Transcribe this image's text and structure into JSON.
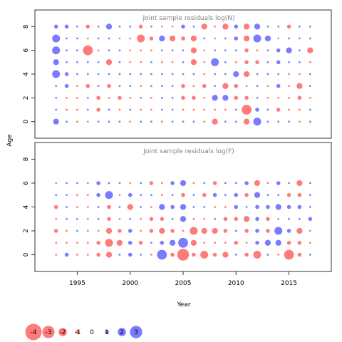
{
  "chart_data": [
    {
      "type": "scatter",
      "subtype": "bubble",
      "title": "Joint sample residuals log(N)",
      "ylabel": "Age",
      "xlim": [
        1991,
        2019
      ],
      "ylim": [
        -1.4,
        9.4
      ],
      "x": [
        1993,
        1994,
        1995,
        1996,
        1997,
        1998,
        1999,
        2000,
        2001,
        2002,
        2003,
        2004,
        2005,
        2006,
        2007,
        2008,
        2009,
        2010,
        2011,
        2012,
        2013,
        2014,
        2015,
        2016,
        2017
      ],
      "y_ticks": [
        0,
        2,
        4,
        6,
        8
      ],
      "ages": [
        0,
        1,
        2,
        3,
        4,
        5,
        6,
        7,
        8
      ],
      "residuals": [
        [
          1.5,
          0.5,
          -0.5,
          -0.5,
          0.5,
          0.5,
          0.5,
          -0.5,
          0.5,
          0.5,
          -0.5,
          0.5,
          0.5,
          0.5,
          -0.5,
          -1.5,
          0.5,
          0.5,
          -1.5,
          2.0,
          0.5,
          0.5,
          0.5,
          -0.5,
          0.5
        ],
        [
          0.5,
          -0.5,
          -0.5,
          0.5,
          -1.0,
          0.5,
          -0.5,
          0.5,
          -0.5,
          -0.5,
          0.5,
          0.5,
          -0.5,
          -0.5,
          -0.5,
          -0.5,
          -0.5,
          0.5,
          -2.5,
          1.0,
          0.5,
          -1.0,
          -0.5,
          -0.5,
          0.5
        ],
        [
          0.5,
          -0.5,
          -0.5,
          0.5,
          -1.0,
          -0.5,
          -1.0,
          -0.5,
          0.5,
          -0.5,
          0.5,
          0.5,
          -1.0,
          -1.0,
          -0.5,
          1.5,
          1.5,
          -1.0,
          -1.0,
          0.5,
          -0.5,
          -0.5,
          -0.5,
          -1.0,
          -0.5
        ],
        [
          0.5,
          1.0,
          -0.5,
          -1.0,
          0.5,
          -1.0,
          0.5,
          0.5,
          -0.5,
          0.5,
          0.5,
          0.5,
          -1.0,
          -0.5,
          -1.0,
          0.5,
          -1.5,
          -1.0,
          -0.5,
          0.5,
          -0.5,
          1.0,
          -0.5,
          -1.5,
          0.5
        ],
        [
          2.0,
          1.0,
          0.5,
          0.5,
          0.5,
          0.5,
          0.5,
          0.5,
          0.5,
          0.5,
          0.5,
          0.5,
          0.5,
          0.5,
          -0.5,
          0.5,
          0.5,
          1.5,
          -1.5,
          0.5,
          0.5,
          0.5,
          -0.5,
          -0.5,
          0.5
        ],
        [
          1.5,
          0.5,
          0.5,
          0.5,
          0.5,
          -1.5,
          0.5,
          -0.5,
          -0.5,
          0.5,
          -0.5,
          -0.5,
          0.5,
          -1.5,
          -0.5,
          2.0,
          0.5,
          -0.5,
          -1.0,
          -1.0,
          0.5,
          1.0,
          0.5,
          0.5,
          -0.5
        ],
        [
          2.0,
          0.5,
          0.5,
          -2.5,
          -0.5,
          0.5,
          0.5,
          -0.5,
          -0.5,
          -0.5,
          0.5,
          0.5,
          0.5,
          -1.5,
          -0.5,
          0.5,
          0.5,
          0.5,
          -1.0,
          -0.5,
          0.5,
          1.0,
          1.5,
          0.5,
          -1.5
        ],
        [
          2.0,
          0.5,
          0.5,
          -0.5,
          0.5,
          0.5,
          -0.5,
          -0.5,
          -2.0,
          -1.0,
          1.5,
          -1.5,
          -1.0,
          -1.5,
          0.5,
          -0.5,
          0.5,
          1.0,
          -1.5,
          2.0,
          1.5,
          -0.5,
          0.5,
          0.5,
          0.5
        ],
        [
          1.0,
          1.0,
          0.5,
          -1.0,
          0.5,
          1.5,
          0.5,
          0.5,
          -1.0,
          0.5,
          -0.5,
          -0.5,
          1.0,
          0.5,
          -1.5,
          -0.5,
          -1.5,
          1.0,
          -1.5,
          1.5,
          0.5,
          0.5,
          -1.0,
          0.5,
          0.5
        ]
      ]
    },
    {
      "type": "scatter",
      "subtype": "bubble",
      "title": "Joint sample residuals log(F)",
      "xlabel": "Year",
      "ylabel": "Age",
      "xlim": [
        1991,
        2019
      ],
      "ylim": [
        -1.4,
        9.4
      ],
      "x": [
        1993,
        1994,
        1995,
        1996,
        1997,
        1998,
        1999,
        2000,
        2001,
        2002,
        2003,
        2004,
        2005,
        2006,
        2007,
        2008,
        2009,
        2010,
        2011,
        2012,
        2013,
        2014,
        2015,
        2016,
        2017
      ],
      "x_ticks": [
        1995,
        2000,
        2005,
        2010,
        2015
      ],
      "y_ticks": [
        0,
        2,
        4,
        6,
        8
      ],
      "ages": [
        0,
        1,
        2,
        3,
        4,
        5,
        6
      ],
      "residuals": [
        [
          -0.5,
          1.0,
          -0.5,
          -0.5,
          -1.0,
          -1.5,
          0.5,
          1.0,
          0.5,
          -0.5,
          2.5,
          -1.0,
          -3.0,
          -1.0,
          -2.0,
          -1.0,
          -1.5,
          0.5,
          -1.0,
          -2.0,
          0.5,
          -0.5,
          -2.5,
          -1.0,
          0.5
        ],
        [
          -0.5,
          -0.5,
          -0.5,
          -0.5,
          -1.0,
          -2.0,
          -1.5,
          1.0,
          -1.0,
          0.5,
          1.0,
          1.5,
          2.5,
          -1.5,
          -0.5,
          -0.5,
          -0.5,
          -1.0,
          -0.5,
          1.0,
          1.5,
          1.5,
          -1.0,
          -1.0,
          -0.5
        ],
        [
          -1.0,
          -0.5,
          0.5,
          -0.5,
          -0.5,
          -1.5,
          -1.0,
          1.0,
          -0.5,
          -1.0,
          -1.5,
          -1.0,
          -0.5,
          -2.0,
          -1.5,
          -1.5,
          -1.0,
          0.5,
          -1.0,
          1.0,
          -1.0,
          2.0,
          1.0,
          -1.5,
          -0.5
        ],
        [
          -0.5,
          0.5,
          0.5,
          -0.5,
          0.5,
          -1.0,
          -0.5,
          0.5,
          -0.5,
          -1.0,
          -1.0,
          0.5,
          1.5,
          -0.5,
          -0.5,
          0.5,
          -1.0,
          -1.0,
          -1.5,
          1.0,
          -1.0,
          -0.5,
          0.5,
          0.5,
          1.0
        ],
        [
          -1.0,
          0.5,
          -0.5,
          -0.5,
          0.5,
          -1.0,
          0.5,
          -1.5,
          0.5,
          -0.5,
          1.5,
          1.0,
          1.5,
          0.5,
          0.5,
          -0.5,
          -0.5,
          1.0,
          0.5,
          1.0,
          1.0,
          1.5,
          1.0,
          1.0,
          0.5
        ],
        [
          0.5,
          0.5,
          -0.5,
          -0.5,
          1.0,
          2.0,
          -0.5,
          1.0,
          0.5,
          0.5,
          -0.5,
          0.5,
          -1.0,
          0.5,
          -1.0,
          1.0,
          0.5,
          1.0,
          -1.0,
          1.5,
          0.5,
          0.5,
          -1.0,
          -1.0,
          0.5
        ],
        [
          -0.5,
          0.5,
          0.5,
          -0.5,
          1.0,
          0.5,
          0.5,
          -0.5,
          0.5,
          -1.0,
          -0.5,
          1.0,
          1.5,
          -0.5,
          0.5,
          -1.0,
          0.5,
          0.5,
          1.0,
          -1.5,
          -0.5,
          1.0,
          0.5,
          -1.5,
          0.5
        ]
      ]
    }
  ],
  "legend": {
    "values": [
      -4,
      -3,
      -2,
      -1,
      0,
      1,
      2,
      3
    ],
    "labels": [
      "-4",
      "-3",
      "-2",
      "-1",
      "0",
      "1",
      "2",
      "3"
    ]
  },
  "colors": {
    "negative": "#ff5a5a",
    "positive": "#5a5aff"
  }
}
